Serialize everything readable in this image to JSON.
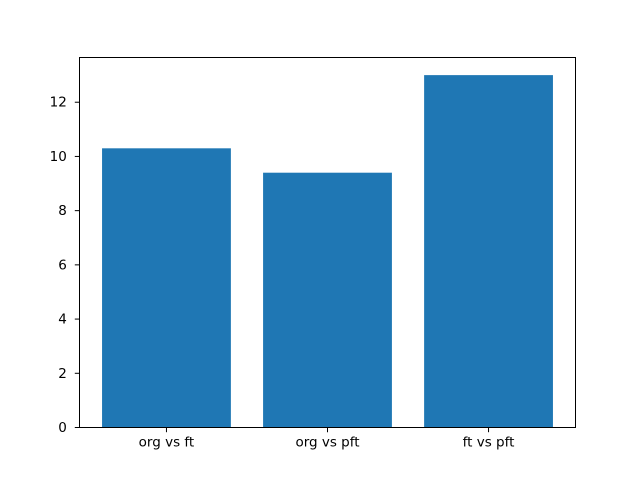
{
  "chart_data": {
    "type": "bar",
    "categories": [
      "org vs ft",
      "org vs pft",
      "ft vs pft"
    ],
    "values": [
      10.3,
      9.4,
      13.0
    ],
    "title": "",
    "xlabel": "",
    "ylabel": "",
    "ylim": [
      0,
      13.65
    ],
    "yticks": [
      0,
      2,
      4,
      6,
      8,
      10,
      12
    ],
    "ytick_labels": [
      "0",
      "2",
      "4",
      "6",
      "8",
      "10",
      "12"
    ],
    "bar_color": "#1f77b4",
    "bar_width_units": 0.8,
    "grid": false,
    "legend": null,
    "background_color": "#ffffff",
    "spine_color": "#000000",
    "tick_color": "#000000",
    "tick_label_color": "#000000"
  }
}
